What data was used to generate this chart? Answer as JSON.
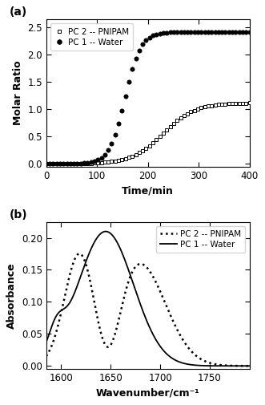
{
  "panel_a": {
    "label": "(a)",
    "xlabel": "Time/min",
    "ylabel": "Molar Ratio",
    "xlim": [
      0,
      400
    ],
    "ylim": [
      -0.05,
      2.65
    ],
    "yticks": [
      0.0,
      0.5,
      1.0,
      1.5,
      2.0,
      2.5
    ],
    "xticks": [
      0,
      100,
      200,
      300,
      400
    ],
    "water_label": "PC 1 -- Water",
    "pnipam_label": "PC 2 -- PNIPAM"
  },
  "panel_b": {
    "label": "(b)",
    "xlabel": "Wavenumber/cm⁻¹",
    "ylabel": "Absorbance",
    "xlim": [
      1585,
      1790
    ],
    "ylim": [
      -0.005,
      0.225
    ],
    "yticks": [
      0.0,
      0.05,
      0.1,
      0.15,
      0.2
    ],
    "xticks": [
      1600,
      1650,
      1700,
      1750
    ],
    "water_label": "PC 1 -- Water",
    "pnipam_label": "PC 2 -- PNIPAM"
  }
}
